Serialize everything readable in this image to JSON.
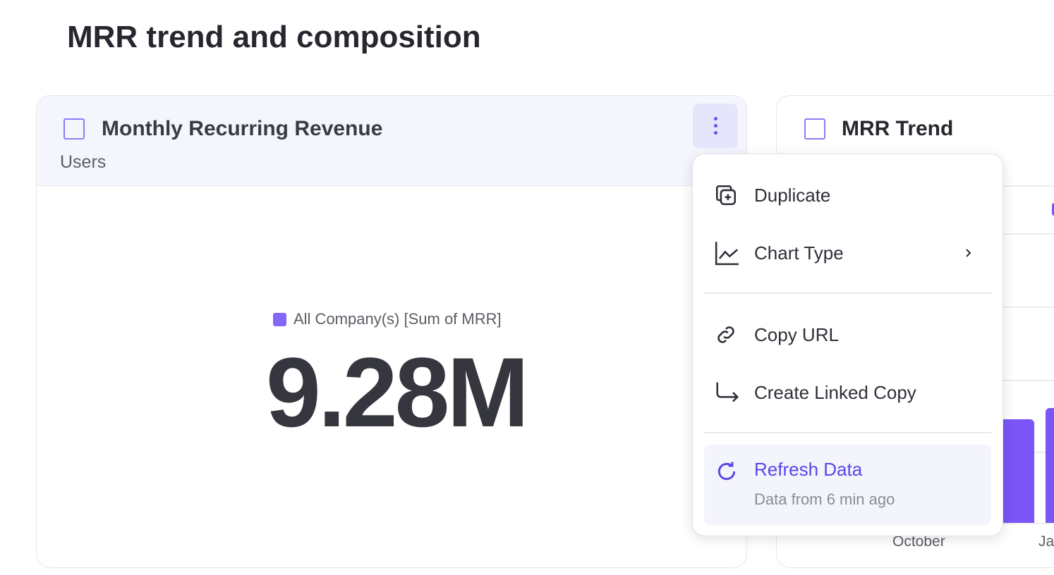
{
  "page": {
    "title": "MRR trend and composition"
  },
  "card1": {
    "title": "Monthly Recurring Revenue",
    "subtitle": "Users",
    "legend": "All Company(s) [Sum of MRR]",
    "value": "9.28M",
    "icon": "chart-icon",
    "accent": "#8467f5"
  },
  "card2": {
    "title": "MRR Trend",
    "icon": "chart-icon",
    "x_labels": [
      "October",
      "Ja"
    ],
    "bar_color": "#7a55f7"
  },
  "menu": {
    "items": [
      {
        "label": "Duplicate",
        "icon": "duplicate-icon"
      },
      {
        "label": "Chart Type",
        "icon": "line-chart-icon"
      },
      {
        "label": "Copy URL",
        "icon": "link-icon"
      },
      {
        "label": "Create Linked Copy",
        "icon": "linked-arrow-icon"
      }
    ],
    "refresh": {
      "label": "Refresh Data",
      "sub": "Data from 6 min ago",
      "icon": "refresh-icon",
      "color": "#5b45e8"
    }
  }
}
